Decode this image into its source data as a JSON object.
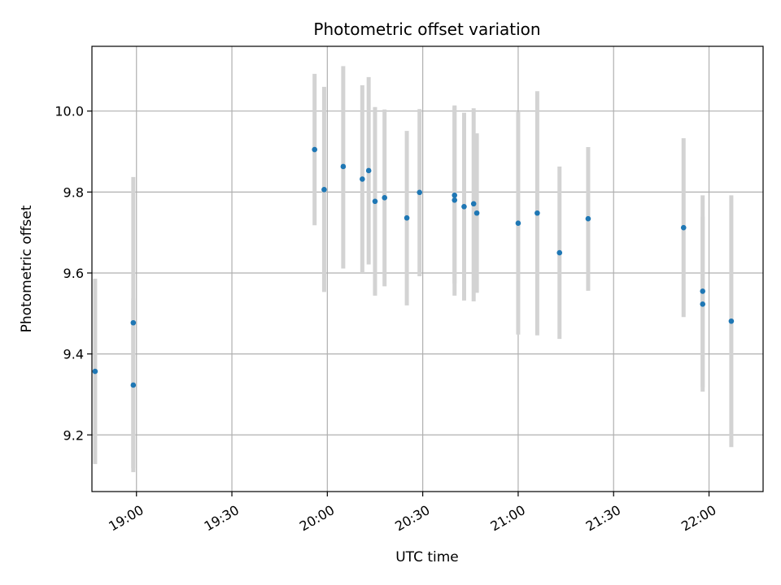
{
  "chart_data": {
    "type": "scatter",
    "title": "Photometric offset variation",
    "xlabel": "UTC time",
    "ylabel": "Photometric offset",
    "x_ticks": [
      "19:00",
      "19:30",
      "20:00",
      "20:30",
      "21:00",
      "21:30",
      "22:00"
    ],
    "y_ticks": [
      "9.2",
      "9.4",
      "9.6",
      "9.8",
      "10.0"
    ],
    "xlim": [
      "18:46",
      "22:17"
    ],
    "ylim": [
      9.06,
      10.16
    ],
    "grid": true,
    "colors": {
      "points": "#1f77b4",
      "errorbars": "#d3d3d3",
      "grid": "#b0b0b0"
    },
    "points": [
      {
        "x": "18:47",
        "y": 9.357,
        "ylow": 9.128,
        "yhigh": 9.586
      },
      {
        "x": "18:59",
        "y": 9.323,
        "ylow": 9.108,
        "yhigh": 9.537
      },
      {
        "x": "18:59",
        "y": 9.477,
        "ylow": 9.118,
        "yhigh": 9.837
      },
      {
        "x": "19:56",
        "y": 9.905,
        "ylow": 9.718,
        "yhigh": 10.092
      },
      {
        "x": "19:59",
        "y": 9.806,
        "ylow": 9.553,
        "yhigh": 10.06
      },
      {
        "x": "20:05",
        "y": 9.863,
        "ylow": 9.611,
        "yhigh": 10.111
      },
      {
        "x": "20:11",
        "y": 9.832,
        "ylow": 9.6,
        "yhigh": 10.064
      },
      {
        "x": "20:13",
        "y": 9.853,
        "ylow": 9.621,
        "yhigh": 10.084
      },
      {
        "x": "20:15",
        "y": 9.777,
        "ylow": 9.544,
        "yhigh": 10.01
      },
      {
        "x": "20:18",
        "y": 9.786,
        "ylow": 9.567,
        "yhigh": 10.004
      },
      {
        "x": "20:25",
        "y": 9.736,
        "ylow": 9.52,
        "yhigh": 9.951
      },
      {
        "x": "20:29",
        "y": 9.799,
        "ylow": 9.592,
        "yhigh": 10.005
      },
      {
        "x": "20:40",
        "y": 9.78,
        "ylow": 9.544,
        "yhigh": 10.014
      },
      {
        "x": "20:40",
        "y": 9.792,
        "ylow": 9.574,
        "yhigh": 10.011
      },
      {
        "x": "20:43",
        "y": 9.764,
        "ylow": 9.532,
        "yhigh": 9.996
      },
      {
        "x": "20:46",
        "y": 9.771,
        "ylow": 9.53,
        "yhigh": 10.007
      },
      {
        "x": "20:47",
        "y": 9.748,
        "ylow": 9.551,
        "yhigh": 9.945
      },
      {
        "x": "21:00",
        "y": 9.723,
        "ylow": 9.448,
        "yhigh": 9.998
      },
      {
        "x": "21:06",
        "y": 9.748,
        "ylow": 9.446,
        "yhigh": 10.049
      },
      {
        "x": "21:13",
        "y": 9.65,
        "ylow": 9.437,
        "yhigh": 9.863
      },
      {
        "x": "21:22",
        "y": 9.734,
        "ylow": 9.556,
        "yhigh": 9.911
      },
      {
        "x": "21:52",
        "y": 9.712,
        "ylow": 9.491,
        "yhigh": 9.933
      },
      {
        "x": "21:58",
        "y": 9.555,
        "ylow": 9.318,
        "yhigh": 9.792
      },
      {
        "x": "21:58",
        "y": 9.523,
        "ylow": 9.307,
        "yhigh": 9.739
      },
      {
        "x": "22:07",
        "y": 9.481,
        "ylow": 9.17,
        "yhigh": 9.792
      }
    ]
  }
}
